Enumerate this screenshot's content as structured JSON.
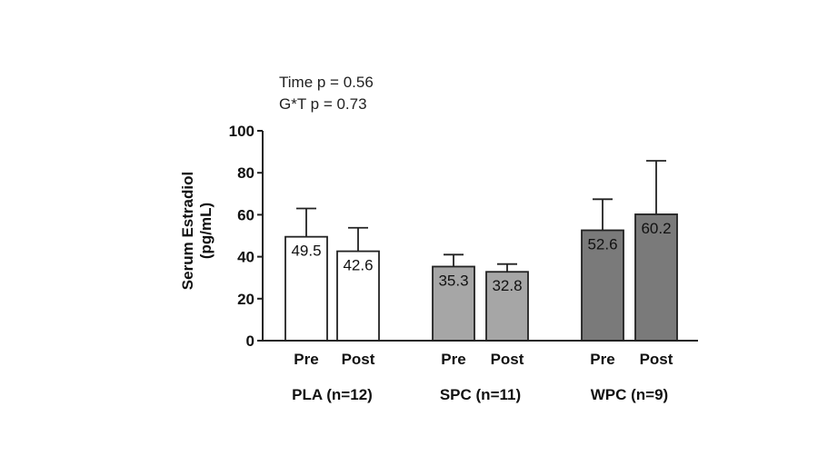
{
  "chart_data": {
    "type": "bar",
    "annotations": [
      "Time p = 0.56",
      "G*T p = 0.73"
    ],
    "ylabel_line1": "Serum Estradiol",
    "ylabel_line2": "(pg/mL)",
    "ylim": [
      0,
      100
    ],
    "yticks": [
      "0",
      "20",
      "40",
      "60",
      "80",
      "100"
    ],
    "groups": [
      {
        "label": "PLA (n=12)",
        "color": "#ffffff",
        "bars": [
          {
            "label": "Pre",
            "value": 49.5,
            "value_label": "49.5",
            "error": 13.5
          },
          {
            "label": "Post",
            "value": 42.6,
            "value_label": "42.6",
            "error": 11.2
          }
        ]
      },
      {
        "label": "SPC (n=11)",
        "color": "#a6a6a6",
        "bars": [
          {
            "label": "Pre",
            "value": 35.3,
            "value_label": "35.3",
            "error": 5.7
          },
          {
            "label": "Post",
            "value": 32.8,
            "value_label": "32.8",
            "error": 3.7
          }
        ]
      },
      {
        "label": "WPC (n=9)",
        "color": "#7a7a7a",
        "bars": [
          {
            "label": "Pre",
            "value": 52.6,
            "value_label": "52.6",
            "error": 14.8
          },
          {
            "label": "Post",
            "value": 60.2,
            "value_label": "60.2",
            "error": 25.5
          }
        ]
      }
    ]
  }
}
